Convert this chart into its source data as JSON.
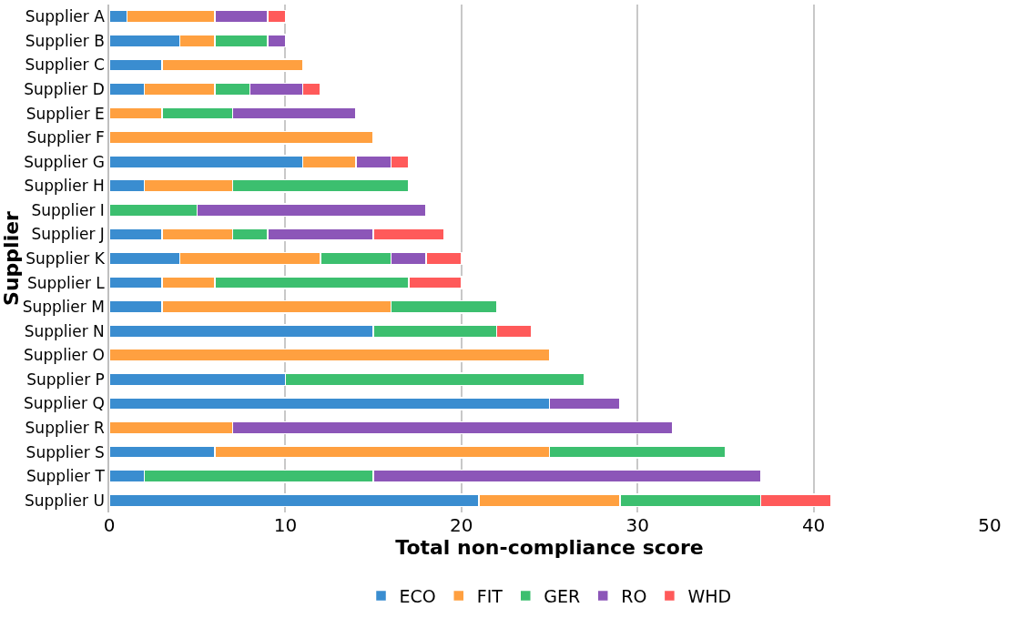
{
  "chart_data": {
    "type": "bar",
    "orientation": "horizontal",
    "stacked": true,
    "xlabel": "Total non-compliance score",
    "ylabel": "Supplier",
    "categories": [
      "Supplier A",
      "Supplier B",
      "Supplier C",
      "Supplier D",
      "Supplier E",
      "Supplier F",
      "Supplier G",
      "Supplier H",
      "Supplier I",
      "Supplier J",
      "Supplier K",
      "Supplier L",
      "Supplier M",
      "Supplier N",
      "Supplier O",
      "Supplier P",
      "Supplier Q",
      "Supplier R",
      "Supplier S",
      "Supplier T",
      "Supplier U"
    ],
    "series": [
      {
        "name": "ECO",
        "color": "#3a8dd0",
        "values": [
          1,
          4,
          3,
          2,
          null,
          null,
          11,
          2,
          null,
          3,
          4,
          3,
          3,
          15,
          null,
          10,
          25,
          null,
          6,
          2,
          21
        ]
      },
      {
        "name": "FIT",
        "color": "#ffa040",
        "values": [
          5,
          2,
          8,
          4,
          3,
          15,
          3,
          5,
          null,
          4,
          8,
          3,
          13,
          null,
          25,
          null,
          null,
          7,
          19,
          null,
          8
        ]
      },
      {
        "name": "GER",
        "color": "#3cbf6f",
        "values": [
          null,
          3,
          null,
          2,
          4,
          null,
          null,
          10,
          5,
          2,
          4,
          11,
          6,
          7,
          null,
          17,
          null,
          null,
          10,
          13,
          8
        ]
      },
      {
        "name": "RO",
        "color": "#8c56b8",
        "values": [
          3,
          1,
          null,
          3,
          7,
          null,
          2,
          null,
          13,
          6,
          2,
          null,
          null,
          null,
          null,
          null,
          4,
          25,
          null,
          22,
          null
        ]
      },
      {
        "name": "WHD",
        "color": "#ff5a5a",
        "values": [
          1,
          null,
          null,
          1,
          null,
          null,
          1,
          null,
          null,
          4,
          2,
          3,
          null,
          2,
          null,
          null,
          null,
          null,
          null,
          null,
          4
        ]
      }
    ],
    "xlim": [
      0,
      50
    ],
    "xticks": [
      0,
      10,
      20,
      30,
      40,
      50
    ],
    "grid": "x",
    "legend": "bottom"
  }
}
